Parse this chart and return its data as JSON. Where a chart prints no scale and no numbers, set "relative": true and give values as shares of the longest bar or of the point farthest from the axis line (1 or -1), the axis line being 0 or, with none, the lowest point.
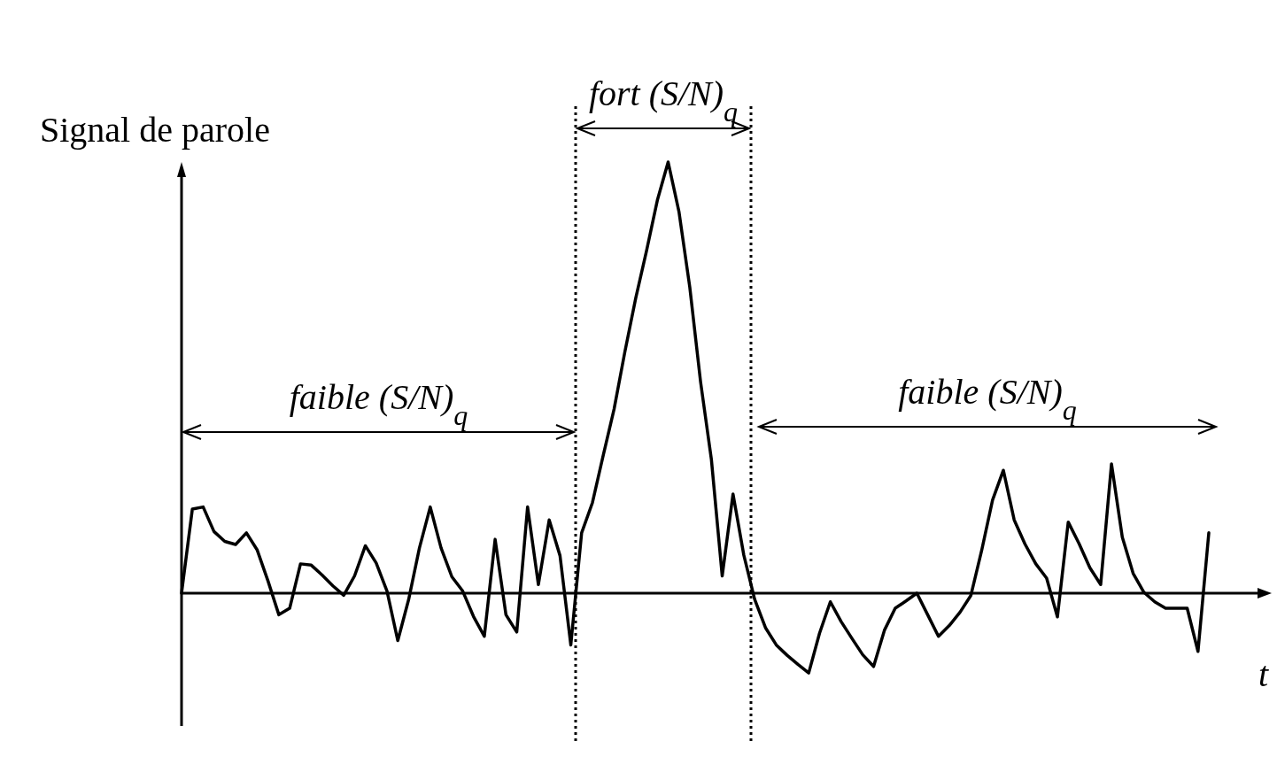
{
  "chart_data": {
    "type": "line",
    "relative": true,
    "ylabel": "Signal de parole",
    "xlabel": "t",
    "tick_labels": false,
    "marker": "none",
    "line_style": "solid",
    "categories": [
      null,
      null,
      null,
      null,
      null,
      null,
      null,
      null,
      null,
      null,
      null,
      null,
      null,
      null,
      null,
      null,
      null,
      null,
      null,
      null,
      null,
      null,
      null,
      null,
      null,
      null,
      null,
      null,
      null,
      null,
      null,
      null,
      null,
      null,
      null,
      null,
      null,
      null,
      null,
      null,
      null,
      null,
      null,
      null,
      null,
      null,
      null,
      null,
      null,
      null,
      null,
      null,
      null,
      null,
      null,
      null,
      null,
      null,
      null,
      null,
      null,
      null,
      null,
      null,
      null,
      null,
      null,
      null,
      null,
      null,
      null,
      null,
      null,
      null,
      null,
      null,
      null,
      null,
      null,
      null,
      null,
      null,
      null,
      null,
      null,
      null,
      null,
      null,
      null,
      null,
      null,
      null,
      null,
      null,
      null,
      null
    ],
    "series": [
      {
        "color": "#000000",
        "values": [
          0,
          0.195,
          0.2,
          0.143,
          0.12,
          0.113,
          0.14,
          0.1,
          0.028,
          -0.05,
          -0.035,
          0.068,
          0.065,
          0.042,
          0.017,
          -0.005,
          0.04,
          0.11,
          0.07,
          0.005,
          -0.11,
          -0.015,
          0.105,
          0.2,
          0.105,
          0.038,
          0.005,
          -0.054,
          -0.1,
          0.125,
          -0.05,
          -0.09,
          0.2,
          0.02,
          0.17,
          0.087,
          -0.12,
          0.14,
          0.21,
          0.32,
          0.427,
          0.56,
          0.684,
          0.794,
          0.911,
          1,
          0.885,
          0.71,
          0.49,
          0.31,
          0.04,
          0.23,
          0.088,
          -0.014,
          -0.08,
          -0.12,
          -0.144,
          -0.165,
          -0.185,
          -0.093,
          -0.02,
          -0.066,
          -0.105,
          -0.143,
          -0.17,
          -0.086,
          -0.035,
          -0.018,
          0,
          -0.05,
          -0.1,
          -0.075,
          -0.044,
          -0.005,
          0.1,
          0.216,
          0.285,
          0.17,
          0.114,
          0.068,
          0.035,
          -0.055,
          0.165,
          0.115,
          0.059,
          0.02,
          0.3,
          0.13,
          0.046,
          0.002,
          -0.02,
          -0.035,
          -0.035,
          -0.035,
          -0.135,
          0.14
        ]
      }
    ],
    "annotations": [
      "faible (S/N)$_{q}$",
      "fort (S/N)$_{q}$",
      "faible (S/N)$_{q}$"
    ]
  }
}
